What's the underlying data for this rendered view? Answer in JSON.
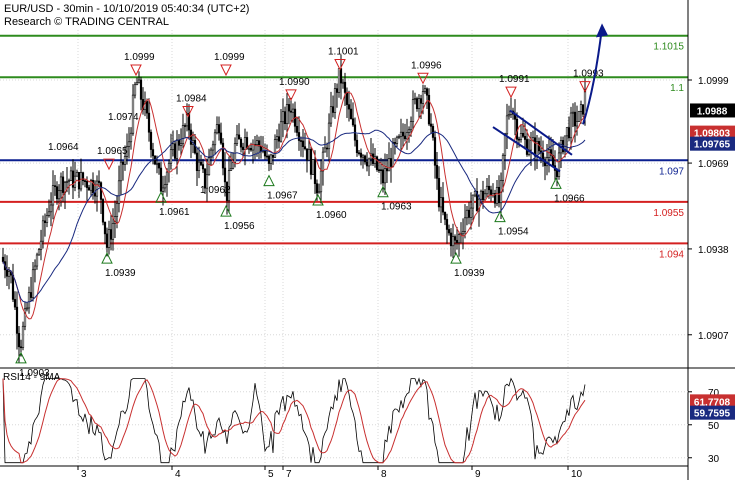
{
  "header": {
    "title": "EUR/USD - 30min - 10/10/2019 05:40:34 (UTC+2)",
    "subtitle": "Research © TRADING CENTRAL"
  },
  "colors": {
    "green": "#2e8b1e",
    "blue": "#0a1f8f",
    "red": "#d42020",
    "candle": "#000000",
    "ma_red": "#c83030",
    "ma_blue": "#1a2a80",
    "arrow": "#0a1a8a",
    "grid": "#d8d8d8"
  },
  "chart_data": [
    {
      "type": "candlestick",
      "instrument": "EUR/USD",
      "ylim": [
        1.0895,
        1.1025
      ],
      "x_ticks": [
        "3",
        "4",
        "5",
        "7",
        "8",
        "9",
        "10"
      ],
      "y_ticks": [
        {
          "value": 1.0907,
          "label": "1.0907"
        },
        {
          "value": 1.0938,
          "label": "1.0938"
        },
        {
          "value": 1.0969,
          "label": "1.0969"
        },
        {
          "value": 1.0999,
          "label": "1.0999"
        }
      ],
      "levels": [
        {
          "value": 1.1015,
          "label": "1.1015",
          "color": "#2e8b1e"
        },
        {
          "value": 1.1,
          "label": "1.1",
          "color": "#2e8b1e"
        },
        {
          "value": 1.097,
          "label": "1.097",
          "color": "#0a1f8f"
        },
        {
          "value": 1.0955,
          "label": "1.0955",
          "color": "#d42020"
        },
        {
          "value": 1.094,
          "label": "1.094",
          "color": "#d42020"
        }
      ],
      "price_tags": [
        {
          "value": 1.0988,
          "label": "1.0988",
          "bg": "#000000",
          "fg": "#ffffff"
        },
        {
          "value": 1.098,
          "label": "1.09803",
          "bg": "#c83030",
          "fg": "#ffffff"
        },
        {
          "value": 1.0976,
          "label": "1.09765",
          "bg": "#1a2a80",
          "fg": "#ffffff"
        }
      ],
      "swing_highs": [
        {
          "x": 109,
          "price": 1.0965,
          "label": "1.0965"
        },
        {
          "x": 188,
          "price": 1.0984,
          "label": "1.0984"
        },
        {
          "x": 136,
          "price": 1.0999,
          "label": "1.0999"
        },
        {
          "x": 226,
          "price": 1.0999,
          "label": "1.0999"
        },
        {
          "x": 291,
          "price": 1.099,
          "label": "1.0990"
        },
        {
          "x": 340,
          "price": 1.1001,
          "label": "1.1001"
        },
        {
          "x": 423,
          "price": 1.0996,
          "label": "1.0996"
        },
        {
          "x": 511,
          "price": 1.0991,
          "label": "1.0991"
        },
        {
          "x": 585,
          "price": 1.0993,
          "label": "1.0993"
        }
      ],
      "swing_lows": [
        {
          "x": 21,
          "price": 1.0903,
          "label": "1.0903"
        },
        {
          "x": 107,
          "price": 1.0939,
          "label": "1.0939"
        },
        {
          "x": 161,
          "price": 1.0961,
          "label": "1.0961"
        },
        {
          "x": 226,
          "price": 1.0956,
          "label": "1.0956"
        },
        {
          "x": 269,
          "price": 1.0967,
          "label": "1.0967"
        },
        {
          "x": 318,
          "price": 1.096,
          "label": "1.0960"
        },
        {
          "x": 383,
          "price": 1.0963,
          "label": "1.0963"
        },
        {
          "x": 456,
          "price": 1.0939,
          "label": "1.0939"
        },
        {
          "x": 500,
          "price": 1.0954,
          "label": "1.0954"
        },
        {
          "x": 556,
          "price": 1.0966,
          "label": "1.0966"
        }
      ],
      "extra_labels": [
        {
          "price": 1.0974,
          "label": "1.0974"
        },
        {
          "price": 1.0964,
          "label": "1.0964"
        },
        {
          "price": 1.0962,
          "label": "1.0962"
        }
      ],
      "trend_arrow": {
        "from": [
          1.0983,
          2
        ],
        "to": [
          1.1018,
          10
        ]
      },
      "price_path": [
        [
          0,
          1.0935
        ],
        [
          10,
          1.093
        ],
        [
          20,
          1.0903
        ],
        [
          30,
          1.0922
        ],
        [
          40,
          1.094
        ],
        [
          50,
          1.0955
        ],
        [
          60,
          1.0962
        ],
        [
          70,
          1.0963
        ],
        [
          80,
          1.0963
        ],
        [
          90,
          1.0962
        ],
        [
          100,
          1.096
        ],
        [
          107,
          1.0939
        ],
        [
          115,
          1.095
        ],
        [
          122,
          1.0968
        ],
        [
          128,
          1.0974
        ],
        [
          136,
          1.0999
        ],
        [
          145,
          1.0988
        ],
        [
          155,
          1.097
        ],
        [
          161,
          1.0961
        ],
        [
          170,
          1.097
        ],
        [
          180,
          1.0978
        ],
        [
          188,
          1.0984
        ],
        [
          196,
          1.097
        ],
        [
          205,
          1.0962
        ],
        [
          212,
          1.0976
        ],
        [
          220,
          1.0985
        ],
        [
          226,
          1.0956
        ],
        [
          235,
          1.0975
        ],
        [
          245,
          1.0978
        ],
        [
          255,
          1.0976
        ],
        [
          262,
          1.0975
        ],
        [
          269,
          1.0967
        ],
        [
          278,
          1.098
        ],
        [
          291,
          1.099
        ],
        [
          300,
          1.098
        ],
        [
          310,
          1.097
        ],
        [
          318,
          1.096
        ],
        [
          326,
          1.0975
        ],
        [
          334,
          1.0992
        ],
        [
          340,
          1.1001
        ],
        [
          348,
          1.0988
        ],
        [
          356,
          1.0976
        ],
        [
          365,
          1.0972
        ],
        [
          375,
          1.0968
        ],
        [
          383,
          1.0963
        ],
        [
          392,
          1.0972
        ],
        [
          402,
          1.0978
        ],
        [
          412,
          1.0988
        ],
        [
          423,
          1.0996
        ],
        [
          430,
          1.0985
        ],
        [
          438,
          1.0958
        ],
        [
          446,
          1.0945
        ],
        [
          456,
          1.0939
        ],
        [
          465,
          1.095
        ],
        [
          475,
          1.0955
        ],
        [
          485,
          1.0958
        ],
        [
          493,
          1.096
        ],
        [
          500,
          1.0954
        ],
        [
          506,
          1.0983
        ],
        [
          511,
          1.0991
        ],
        [
          518,
          1.098
        ],
        [
          526,
          1.0976
        ],
        [
          534,
          1.0975
        ],
        [
          542,
          1.0973
        ],
        [
          550,
          1.097
        ],
        [
          556,
          1.0966
        ],
        [
          564,
          1.0978
        ],
        [
          572,
          1.0984
        ],
        [
          580,
          1.0985
        ],
        [
          585,
          1.0993
        ]
      ]
    },
    {
      "type": "line",
      "name": "RSI14 - 9MA",
      "ylim": [
        25,
        82
      ],
      "y_ticks": [
        30,
        50,
        70
      ],
      "tags": [
        {
          "value": 61.7708,
          "label": "61.7708",
          "bg": "#c83030",
          "fg": "#ffffff"
        },
        {
          "value": 59.7595,
          "label": "59.7595",
          "bg": "#1a2a80",
          "fg": "#ffffff"
        }
      ]
    }
  ]
}
